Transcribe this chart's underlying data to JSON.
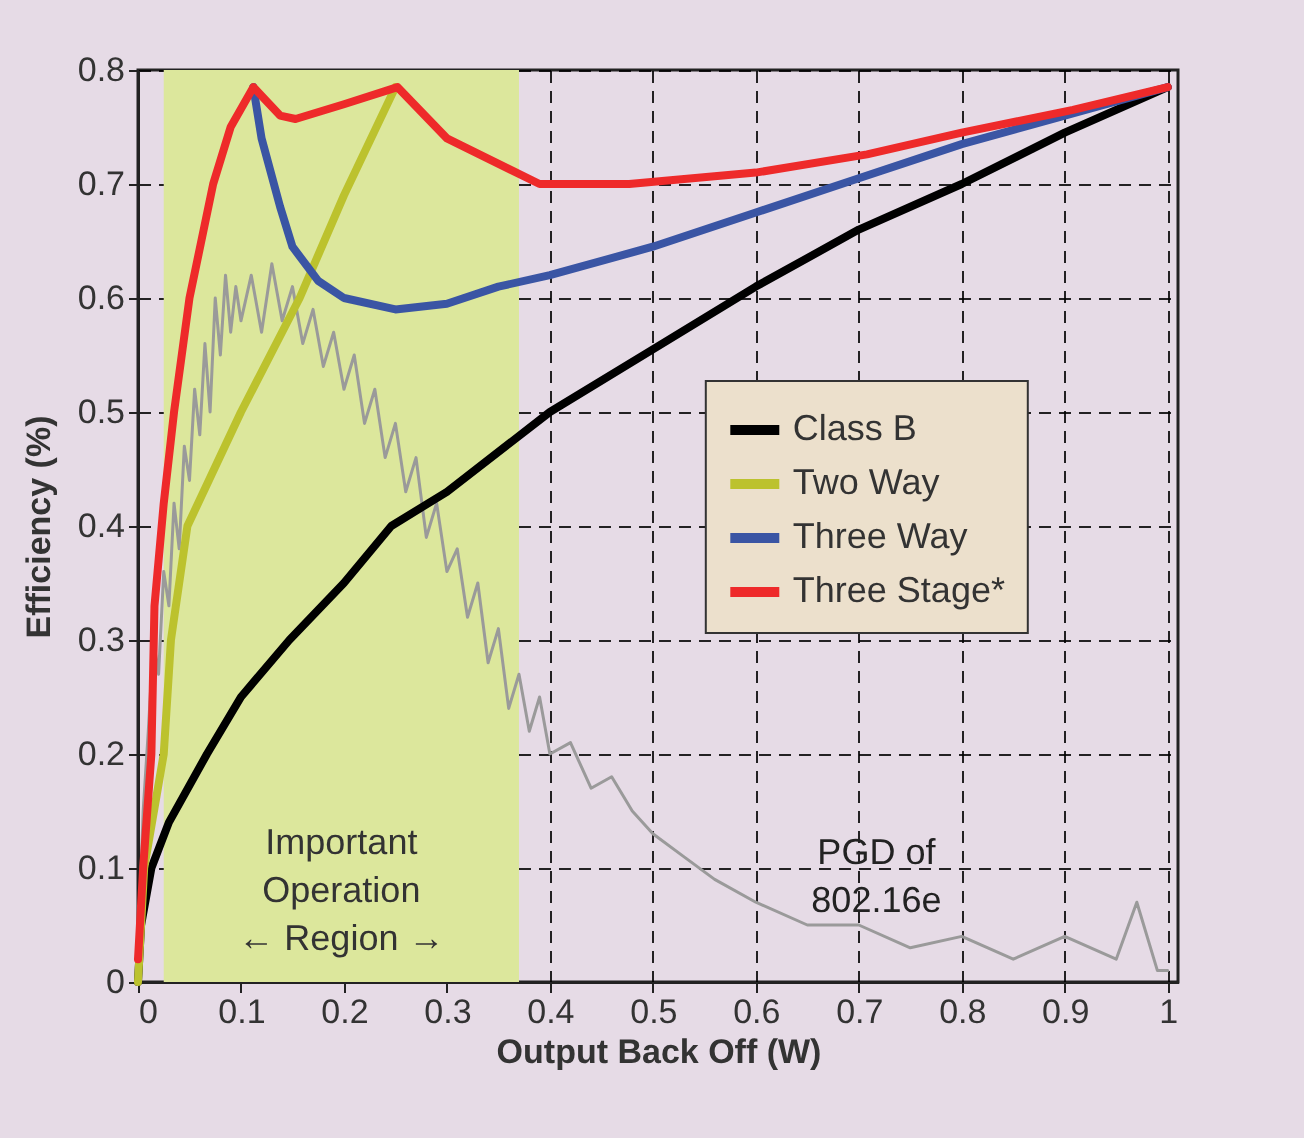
{
  "chart_data": {
    "type": "line",
    "xlabel": "Output Back Off (W)",
    "ylabel": "Efficiency (%)",
    "xlim": [
      0,
      1.01
    ],
    "xticks": [
      0,
      0.1,
      0.2,
      0.3,
      0.4,
      0.5,
      0.6,
      0.7,
      0.8,
      0.9,
      1
    ],
    "ylim": [
      0,
      0.8
    ],
    "yticks": [
      0,
      0.1,
      0.2,
      0.3,
      0.4,
      0.5,
      0.6,
      0.7,
      0.8
    ],
    "grid": true,
    "legend": "right",
    "line_style": "solid",
    "bands": [
      {
        "axis": "x",
        "from": 0.025,
        "to": 0.37,
        "label": "Important\nOperation\n←  Region  →",
        "color": "#dce79c"
      }
    ],
    "annotations": [
      "PGD of\n802.16e"
    ],
    "series": [
      {
        "color": "#9a9a9a",
        "x": [
          0,
          0.005,
          0.01,
          0.015,
          0.02,
          0.025,
          0.03,
          0.035,
          0.04,
          0.045,
          0.05,
          0.055,
          0.06,
          0.065,
          0.07,
          0.075,
          0.08,
          0.085,
          0.09,
          0.095,
          0.1,
          0.11,
          0.12,
          0.13,
          0.14,
          0.15,
          0.16,
          0.17,
          0.18,
          0.19,
          0.2,
          0.21,
          0.22,
          0.23,
          0.24,
          0.25,
          0.26,
          0.27,
          0.28,
          0.29,
          0.3,
          0.31,
          0.32,
          0.33,
          0.34,
          0.35,
          0.36,
          0.37,
          0.38,
          0.39,
          0.4,
          0.42,
          0.44,
          0.46,
          0.48,
          0.5,
          0.53,
          0.56,
          0.6,
          0.65,
          0.7,
          0.75,
          0.8,
          0.85,
          0.9,
          0.95,
          0.97,
          0.99,
          1
        ],
        "values": [
          0.02,
          0.15,
          0.22,
          0.3,
          0.27,
          0.36,
          0.33,
          0.42,
          0.38,
          0.47,
          0.44,
          0.52,
          0.48,
          0.56,
          0.5,
          0.6,
          0.55,
          0.62,
          0.57,
          0.61,
          0.58,
          0.62,
          0.57,
          0.63,
          0.58,
          0.61,
          0.56,
          0.59,
          0.54,
          0.57,
          0.52,
          0.55,
          0.49,
          0.52,
          0.46,
          0.49,
          0.43,
          0.46,
          0.39,
          0.42,
          0.36,
          0.38,
          0.32,
          0.35,
          0.28,
          0.31,
          0.24,
          0.27,
          0.22,
          0.25,
          0.2,
          0.21,
          0.17,
          0.18,
          0.15,
          0.13,
          0.11,
          0.09,
          0.07,
          0.05,
          0.05,
          0.03,
          0.04,
          0.02,
          0.04,
          0.02,
          0.07,
          0.01,
          0.01
        ]
      },
      {
        "name": "Class B",
        "color": "#000000",
        "x": [
          0,
          0.003,
          0.013,
          0.03,
          0.067,
          0.1,
          0.147,
          0.2,
          0.246,
          0.3,
          0.4,
          0.5,
          0.6,
          0.7,
          0.8,
          0.9,
          1
        ],
        "values": [
          0,
          0.05,
          0.1,
          0.14,
          0.2,
          0.25,
          0.3,
          0.35,
          0.4,
          0.43,
          0.5,
          0.555,
          0.61,
          0.66,
          0.7,
          0.745,
          0.785
        ]
      },
      {
        "name": "Two Way",
        "color": "#bcc22e",
        "x": [
          0,
          0.006,
          0.025,
          0.032,
          0.048,
          0.1,
          0.157,
          0.2,
          0.25
        ],
        "values": [
          0,
          0.1,
          0.2,
          0.3,
          0.4,
          0.5,
          0.6,
          0.69,
          0.785
        ]
      },
      {
        "name": "Three Way",
        "color": "#3a55a4",
        "x": [
          0.112,
          0.12,
          0.138,
          0.15,
          0.175,
          0.2,
          0.25,
          0.3,
          0.35,
          0.4,
          0.5,
          0.6,
          0.7,
          0.8,
          0.9,
          1
        ],
        "values": [
          0.785,
          0.74,
          0.68,
          0.645,
          0.615,
          0.6,
          0.59,
          0.595,
          0.61,
          0.62,
          0.645,
          0.675,
          0.705,
          0.735,
          0.76,
          0.785
        ]
      },
      {
        "name": "Three Stage*",
        "color": "#ee2a2a",
        "x": [
          0,
          0.005,
          0.013,
          0.016,
          0.025,
          0.035,
          0.05,
          0.073,
          0.09,
          0.112,
          0.138,
          0.153,
          0.2,
          0.252,
          0.3,
          0.39,
          0.477,
          0.6,
          0.708,
          0.8,
          0.908,
          1
        ],
        "values": [
          0.02,
          0.1,
          0.2,
          0.33,
          0.42,
          0.5,
          0.6,
          0.7,
          0.75,
          0.785,
          0.76,
          0.757,
          0.77,
          0.785,
          0.74,
          0.7,
          0.7,
          0.71,
          0.726,
          0.745,
          0.765,
          0.785
        ]
      }
    ]
  }
}
